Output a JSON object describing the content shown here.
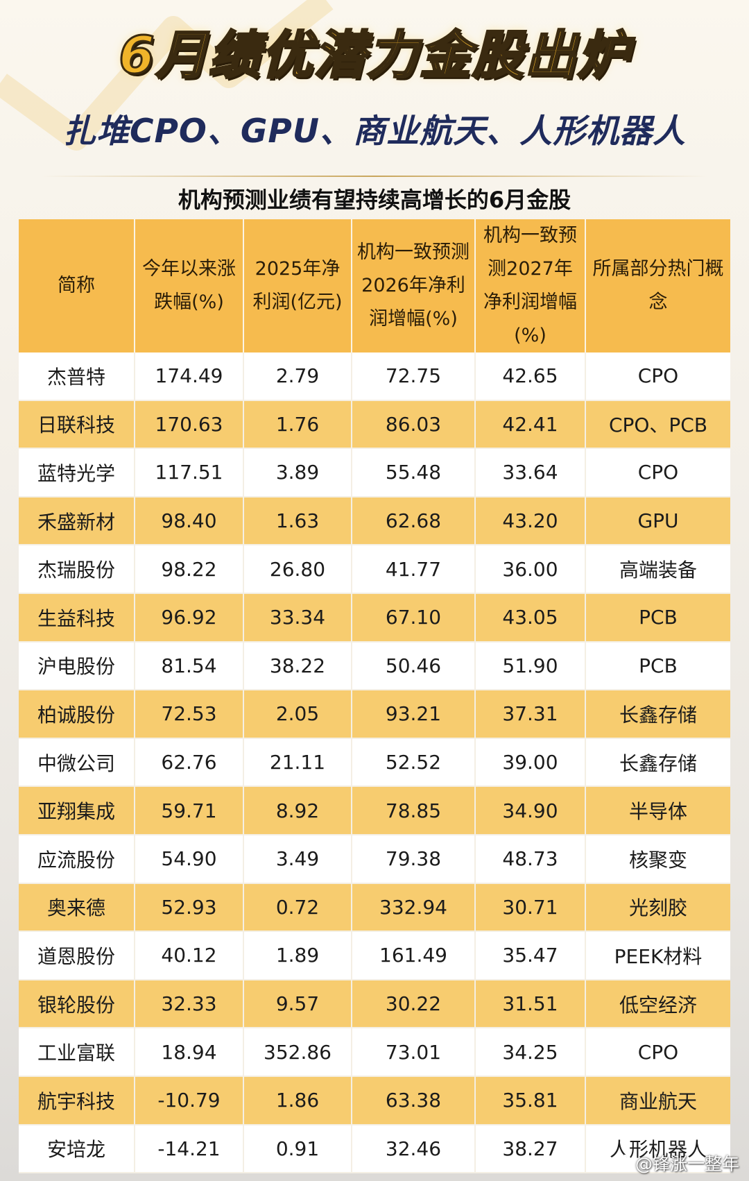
{
  "title": "6月绩优潜力金股出炉",
  "subtitle": "扎堆CPO、GPU、商业航天、人形机器人",
  "table_title": "机构预测业绩有望持续高增长的6月金股",
  "columns": [
    {
      "label": "简称"
    },
    {
      "label": "今年以来涨跌幅(%)"
    },
    {
      "label": "2025年净利润(亿元)"
    },
    {
      "label": "机构一致预测2026年净利润增幅(%)"
    },
    {
      "label": "机构一致预测2027年净利润增幅(%)"
    },
    {
      "label": "所属部分热门概念"
    }
  ],
  "rows": [
    [
      "杰普特",
      "174.49",
      "2.79",
      "72.75",
      "42.65",
      "CPO"
    ],
    [
      "日联科技",
      "170.63",
      "1.76",
      "86.03",
      "42.41",
      "CPO、PCB"
    ],
    [
      "蓝特光学",
      "117.51",
      "3.89",
      "55.48",
      "33.64",
      "CPO"
    ],
    [
      "禾盛新材",
      "98.40",
      "1.63",
      "62.68",
      "43.20",
      "GPU"
    ],
    [
      "杰瑞股份",
      "98.22",
      "26.80",
      "41.77",
      "36.00",
      "高端装备"
    ],
    [
      "生益科技",
      "96.92",
      "33.34",
      "67.10",
      "43.05",
      "PCB"
    ],
    [
      "沪电股份",
      "81.54",
      "38.22",
      "50.46",
      "51.90",
      "PCB"
    ],
    [
      "柏诚股份",
      "72.53",
      "2.05",
      "93.21",
      "37.31",
      "长鑫存储"
    ],
    [
      "中微公司",
      "62.76",
      "21.11",
      "52.52",
      "39.00",
      "长鑫存储"
    ],
    [
      "亚翔集成",
      "59.71",
      "8.92",
      "78.85",
      "34.90",
      "半导体"
    ],
    [
      "应流股份",
      "54.90",
      "3.49",
      "79.38",
      "48.73",
      "核聚变"
    ],
    [
      "奥来德",
      "52.93",
      "0.72",
      "332.94",
      "30.71",
      "光刻胶"
    ],
    [
      "道恩股份",
      "40.12",
      "1.89",
      "161.49",
      "35.47",
      "PEEK材料"
    ],
    [
      "银轮股份",
      "32.33",
      "9.57",
      "30.22",
      "31.51",
      "低空经济"
    ],
    [
      "工业富联",
      "18.94",
      "352.86",
      "73.01",
      "34.25",
      "CPO"
    ],
    [
      "航宇科技",
      "-10.79",
      "1.86",
      "63.38",
      "35.81",
      "商业航天"
    ],
    [
      "安培龙",
      "-14.21",
      "0.91",
      "32.46",
      "38.27",
      "人形机器人"
    ]
  ],
  "watermark": "@锋涨一整年",
  "colors": {
    "header_bg": "#f6bb4e",
    "stripe": "#f7cc6f",
    "title": "#f0b42a",
    "subtitle": "#1f2b5c"
  }
}
